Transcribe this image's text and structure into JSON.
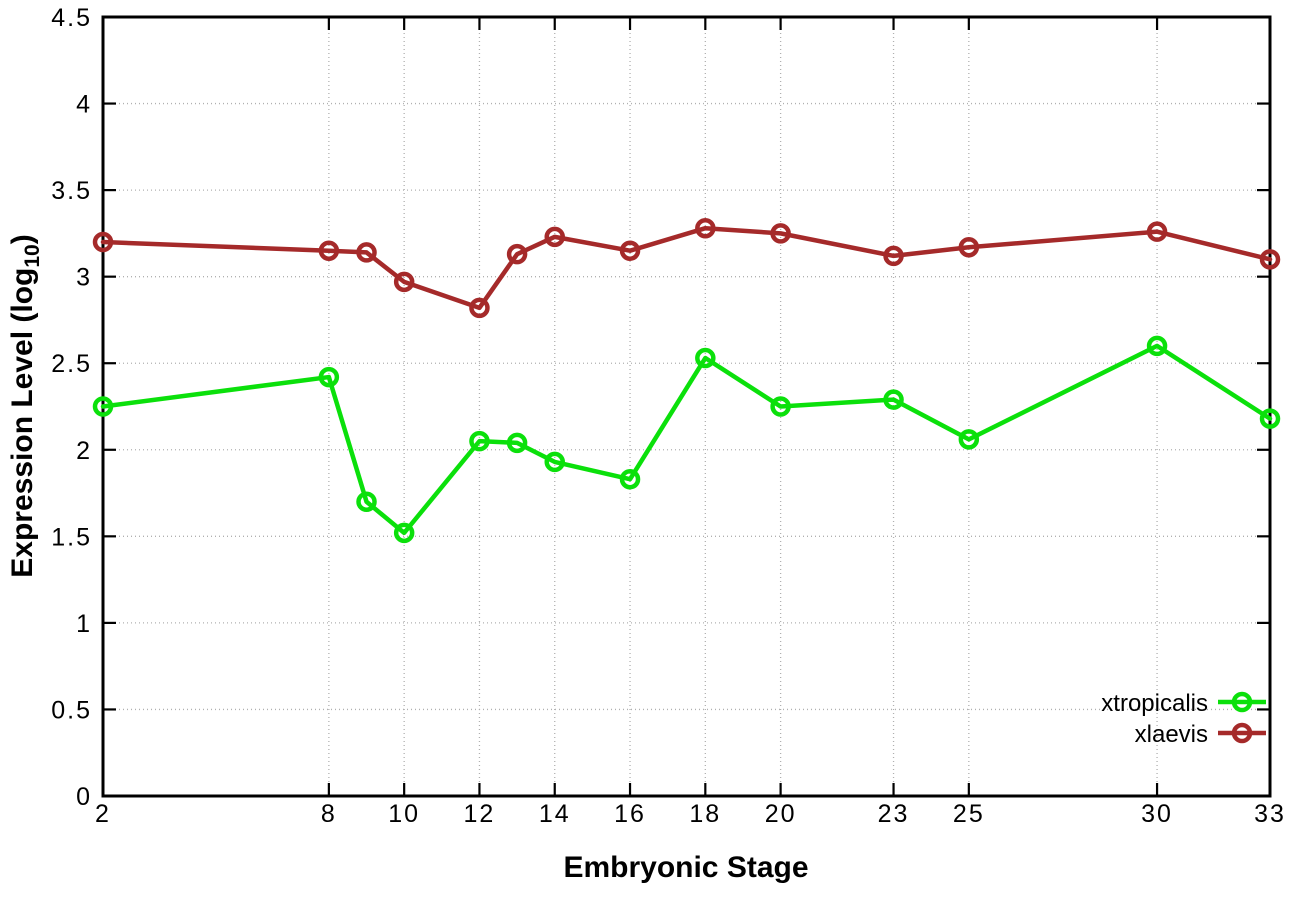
{
  "chart_data": {
    "type": "line",
    "x": [
      2,
      8,
      9,
      10,
      12,
      13,
      14,
      16,
      18,
      20,
      23,
      25,
      30,
      33
    ],
    "series": [
      {
        "name": "xtropicalis",
        "color": "#0be00b",
        "values": [
          2.25,
          2.42,
          1.7,
          1.52,
          2.05,
          2.04,
          1.93,
          1.83,
          2.53,
          2.25,
          2.29,
          2.06,
          2.6,
          2.18
        ]
      },
      {
        "name": "xlaevis",
        "color": "#a52a2a",
        "values": [
          3.2,
          3.15,
          3.14,
          2.97,
          2.82,
          3.13,
          3.23,
          3.15,
          3.28,
          3.25,
          3.12,
          3.17,
          3.26,
          3.1
        ]
      }
    ],
    "xlabel": "Embryonic Stage",
    "ylabel": "Expression Level (log10)",
    "ylabel_parts": {
      "pre": "Expression Level (log",
      "sub": "10",
      "post": ")"
    },
    "xticks": [
      2,
      8,
      10,
      12,
      14,
      16,
      18,
      20,
      23,
      25,
      30,
      33
    ],
    "yticks": [
      0,
      0.5,
      1,
      1.5,
      2,
      2.5,
      3,
      3.5,
      4,
      4.5
    ],
    "xlim": [
      2,
      33
    ],
    "ylim": [
      0,
      4.5
    ],
    "grid": true,
    "legend_position": "bottom-right",
    "colors": {
      "background": "#ffffff",
      "border": "#000000",
      "grid": "#b0b0b0",
      "text": "#000000"
    }
  }
}
